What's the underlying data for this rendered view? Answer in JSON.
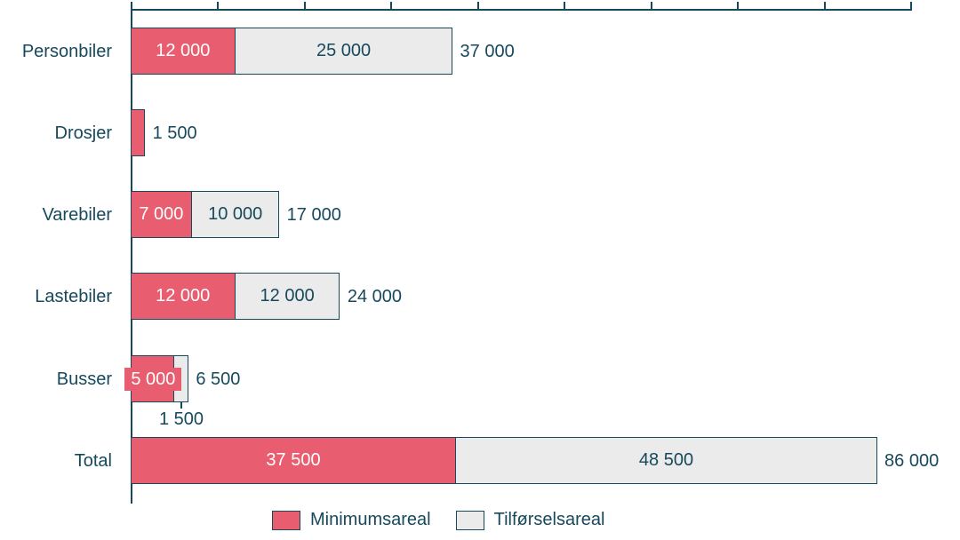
{
  "chart_data": {
    "type": "bar",
    "orientation": "horizontal",
    "stacked": true,
    "title": "",
    "xlabel": "",
    "ylabel": "",
    "xlim": [
      0,
      90000
    ],
    "tick_interval": 10000,
    "grid": false,
    "legend_position": "bottom-center",
    "categories": [
      "Personbiler",
      "Drosjer",
      "Varebiler",
      "Lastebiler",
      "Busser",
      "Total"
    ],
    "series": [
      {
        "name": "Minimumsareal",
        "color": "#e85d6f",
        "values": [
          12000,
          1500,
          7000,
          12000,
          5000,
          37500
        ]
      },
      {
        "name": "Tilførselsareal",
        "color": "#ebebeb",
        "values": [
          25000,
          0,
          10000,
          12000,
          1500,
          48500
        ]
      }
    ],
    "totals": [
      37000,
      1500,
      17000,
      24000,
      6500,
      86000
    ],
    "rows": [
      {
        "category": "Personbiler",
        "min_label": "12 000",
        "til_label": "25 000",
        "right_label": "37 000",
        "min_label_overflow": false,
        "below_label": null
      },
      {
        "category": "Drosjer",
        "min_label": null,
        "til_label": null,
        "right_label": "1 500",
        "min_label_overflow": false,
        "below_label": null
      },
      {
        "category": "Varebiler",
        "min_label": "7 000",
        "til_label": "10 000",
        "right_label": "17 000",
        "min_label_overflow": false,
        "below_label": null
      },
      {
        "category": "Lastebiler",
        "min_label": "12 000",
        "til_label": "12 000",
        "right_label": "24 000",
        "min_label_overflow": false,
        "below_label": null
      },
      {
        "category": "Busser",
        "min_label": "5 000",
        "til_label": null,
        "right_label": "6 500",
        "min_label_overflow": true,
        "below_label": "1 500"
      },
      {
        "category": "Total",
        "min_label": "37 500",
        "til_label": "48 500",
        "right_label": "86 000",
        "min_label_overflow": false,
        "below_label": null
      }
    ]
  },
  "legend": {
    "items": [
      {
        "label": "Minimumsareal",
        "color": "#e85d6f"
      },
      {
        "label": "Tilførselsareal",
        "color": "#ebebeb"
      }
    ]
  },
  "colors": {
    "accent_pink": "#e85d6f",
    "light_fill": "#ebebeb",
    "teal": "#16495c",
    "background": "#ffffff",
    "bar_text_light": "#ffffff"
  }
}
